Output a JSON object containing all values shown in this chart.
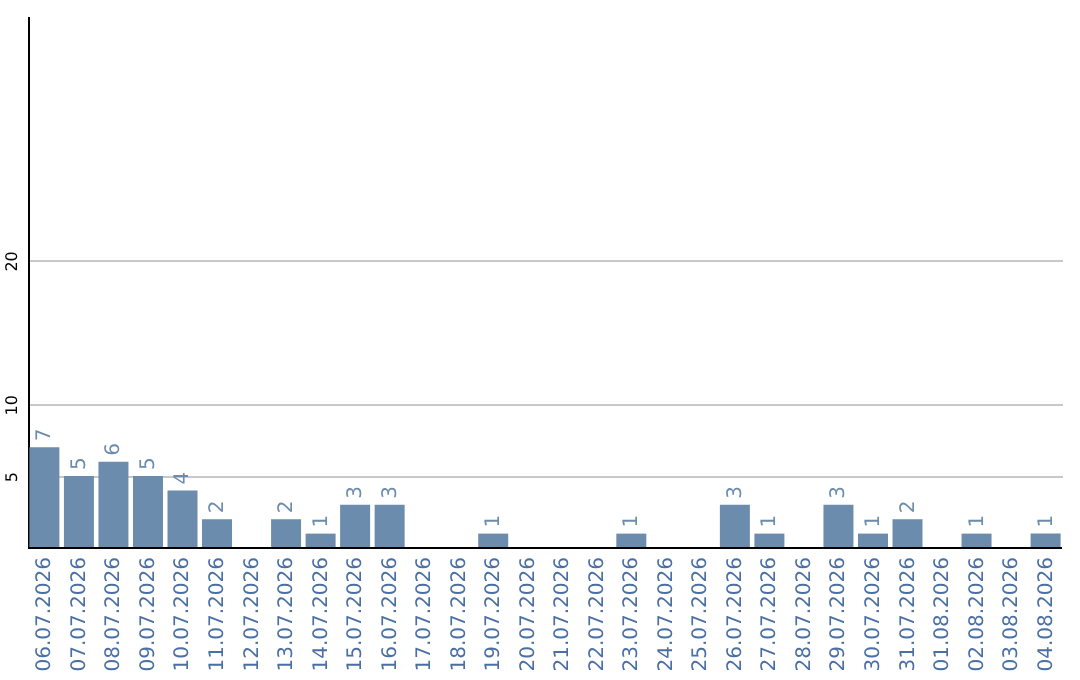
{
  "chart_data": {
    "type": "bar",
    "categories": [
      "06.07.2026",
      "07.07.2026",
      "08.07.2026",
      "09.07.2026",
      "10.07.2026",
      "11.07.2026",
      "12.07.2026",
      "13.07.2026",
      "14.07.2026",
      "15.07.2026",
      "16.07.2026",
      "17.07.2026",
      "18.07.2026",
      "19.07.2026",
      "20.07.2026",
      "21.07.2026",
      "22.07.2026",
      "23.07.2026",
      "24.07.2026",
      "25.07.2026",
      "26.07.2026",
      "27.07.2026",
      "28.07.2026",
      "29.07.2026",
      "30.07.2026",
      "31.07.2026",
      "01.08.2026",
      "02.08.2026",
      "03.08.2026",
      "04.08.2026"
    ],
    "values": [
      7,
      5,
      6,
      5,
      4,
      2,
      null,
      2,
      1,
      3,
      3,
      null,
      null,
      1,
      null,
      null,
      null,
      1,
      null,
      null,
      3,
      1,
      null,
      3,
      1,
      2,
      null,
      1,
      null,
      1
    ],
    "color": "#6b8cad",
    "ylim": [
      0,
      37
    ],
    "yticks": [
      5,
      10,
      20
    ],
    "grid": "y",
    "data_labels": true
  }
}
